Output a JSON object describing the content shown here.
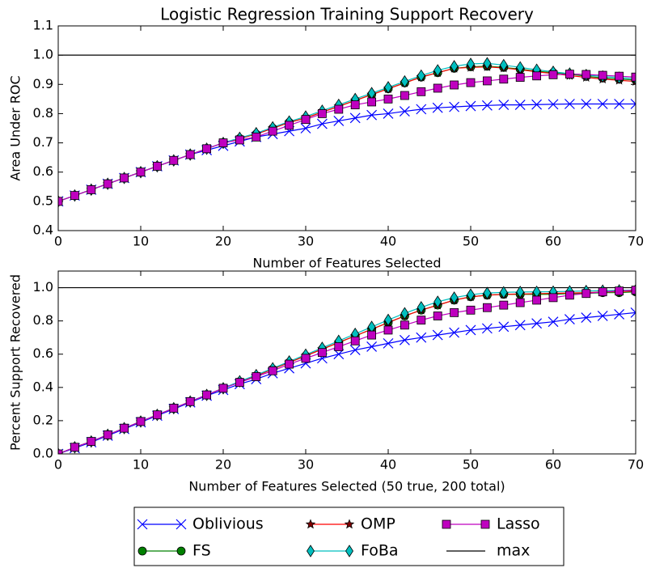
{
  "chart_data": [
    {
      "type": "line",
      "title": "Logistic Regression Training Support Recovery",
      "xlabel": "Number of Features Selected",
      "ylabel": "Area Under ROC",
      "x": [
        0,
        2,
        4,
        6,
        8,
        10,
        12,
        14,
        16,
        18,
        20,
        22,
        24,
        26,
        28,
        30,
        32,
        34,
        36,
        38,
        40,
        42,
        44,
        46,
        48,
        50,
        52,
        54,
        56,
        58,
        60,
        62,
        64,
        66,
        68,
        70
      ],
      "xlim": [
        0,
        70
      ],
      "xticks": [
        0,
        10,
        20,
        30,
        40,
        50,
        60,
        70
      ],
      "ylim": [
        0.4,
        1.1
      ],
      "yticks": [
        0.4,
        0.5,
        0.6,
        0.7,
        0.8,
        0.9,
        {
          "value": 1,
          "label": "1.0"
        },
        1.1
      ],
      "series": [
        {
          "name": "Oblivious",
          "color": "#0000ff",
          "marker": "x",
          "values": [
            0.5,
            0.52,
            0.54,
            0.56,
            0.58,
            0.6,
            0.62,
            0.64,
            0.66,
            0.675,
            0.69,
            0.705,
            0.72,
            0.73,
            0.74,
            0.75,
            0.765,
            0.775,
            0.785,
            0.795,
            0.8,
            0.808,
            0.815,
            0.82,
            0.823,
            0.826,
            0.828,
            0.83,
            0.83,
            0.831,
            0.832,
            0.833,
            0.833,
            0.833,
            0.833,
            0.833
          ]
        },
        {
          "name": "FS",
          "color": "#008000",
          "marker": "circle",
          "values": [
            0.5,
            0.52,
            0.54,
            0.56,
            0.58,
            0.6,
            0.62,
            0.64,
            0.66,
            0.68,
            0.7,
            0.715,
            0.73,
            0.75,
            0.77,
            0.785,
            0.805,
            0.825,
            0.845,
            0.865,
            0.885,
            0.905,
            0.925,
            0.94,
            0.955,
            0.96,
            0.962,
            0.958,
            0.952,
            0.945,
            0.94,
            0.935,
            0.928,
            0.922,
            0.918,
            0.915
          ]
        },
        {
          "name": "OMP",
          "color": "#ff0000",
          "marker": "star",
          "values": [
            0.5,
            0.52,
            0.54,
            0.56,
            0.58,
            0.6,
            0.62,
            0.64,
            0.66,
            0.68,
            0.7,
            0.715,
            0.73,
            0.75,
            0.77,
            0.785,
            0.805,
            0.825,
            0.845,
            0.865,
            0.885,
            0.905,
            0.925,
            0.94,
            0.955,
            0.958,
            0.96,
            0.956,
            0.95,
            0.943,
            0.937,
            0.93,
            0.924,
            0.918,
            0.914,
            0.91
          ]
        },
        {
          "name": "FoBa",
          "color": "#00bfbf",
          "marker": "diamond",
          "values": [
            0.5,
            0.52,
            0.54,
            0.56,
            0.58,
            0.6,
            0.62,
            0.64,
            0.66,
            0.68,
            0.7,
            0.717,
            0.733,
            0.753,
            0.773,
            0.79,
            0.81,
            0.83,
            0.85,
            0.87,
            0.89,
            0.91,
            0.93,
            0.948,
            0.962,
            0.97,
            0.972,
            0.966,
            0.958,
            0.95,
            0.943,
            0.937,
            0.932,
            0.927,
            0.923,
            0.92
          ]
        },
        {
          "name": "Lasso",
          "color": "#bf00bf",
          "marker": "square",
          "values": [
            0.5,
            0.52,
            0.54,
            0.56,
            0.58,
            0.6,
            0.62,
            0.64,
            0.66,
            0.68,
            0.7,
            0.71,
            0.72,
            0.74,
            0.76,
            0.78,
            0.8,
            0.815,
            0.83,
            0.84,
            0.85,
            0.862,
            0.875,
            0.887,
            0.898,
            0.906,
            0.912,
            0.918,
            0.924,
            0.929,
            0.933,
            0.935,
            0.934,
            0.931,
            0.928,
            0.925
          ]
        },
        {
          "name": "max",
          "color": "#000000",
          "marker": "none",
          "values": [
            1,
            1,
            1,
            1,
            1,
            1,
            1,
            1,
            1,
            1,
            1,
            1,
            1,
            1,
            1,
            1,
            1,
            1,
            1,
            1,
            1,
            1,
            1,
            1,
            1,
            1,
            1,
            1,
            1,
            1,
            1,
            1,
            1,
            1,
            1,
            1
          ]
        }
      ]
    },
    {
      "type": "line",
      "xlabel": "Number of Features Selected (50 true, 200 total)",
      "ylabel": "Percent Support Recovered",
      "x": [
        0,
        2,
        4,
        6,
        8,
        10,
        12,
        14,
        16,
        18,
        20,
        22,
        24,
        26,
        28,
        30,
        32,
        34,
        36,
        38,
        40,
        42,
        44,
        46,
        48,
        50,
        52,
        54,
        56,
        58,
        60,
        62,
        64,
        66,
        68,
        70
      ],
      "xlim": [
        0,
        70
      ],
      "xticks": [
        0,
        10,
        20,
        30,
        40,
        50,
        60,
        70
      ],
      "ylim": [
        0,
        1.1
      ],
      "yticks": [
        {
          "value": 0,
          "label": "0.0"
        },
        0.2,
        0.4,
        0.6,
        0.8,
        {
          "value": 1,
          "label": "1.0"
        }
      ],
      "series": [
        {
          "color": "#0000ff",
          "marker": "x",
          "values": [
            0,
            0.035,
            0.07,
            0.11,
            0.15,
            0.19,
            0.23,
            0.27,
            0.31,
            0.35,
            0.385,
            0.42,
            0.45,
            0.485,
            0.515,
            0.545,
            0.575,
            0.6,
            0.625,
            0.645,
            0.665,
            0.685,
            0.7,
            0.715,
            0.73,
            0.745,
            0.755,
            0.765,
            0.775,
            0.785,
            0.795,
            0.81,
            0.82,
            0.83,
            0.84,
            0.85
          ]
        },
        {
          "color": "#008000",
          "marker": "circle",
          "values": [
            0,
            0.04,
            0.075,
            0.115,
            0.155,
            0.195,
            0.235,
            0.275,
            0.315,
            0.355,
            0.395,
            0.435,
            0.47,
            0.51,
            0.55,
            0.59,
            0.63,
            0.67,
            0.71,
            0.75,
            0.79,
            0.83,
            0.865,
            0.895,
            0.925,
            0.945,
            0.955,
            0.96,
            0.96,
            0.96,
            0.96,
            0.965,
            0.965,
            0.97,
            0.97,
            0.975
          ]
        },
        {
          "color": "#ff0000",
          "marker": "star",
          "values": [
            0,
            0.04,
            0.075,
            0.115,
            0.155,
            0.195,
            0.235,
            0.275,
            0.315,
            0.355,
            0.395,
            0.435,
            0.47,
            0.51,
            0.55,
            0.59,
            0.63,
            0.67,
            0.71,
            0.75,
            0.79,
            0.83,
            0.865,
            0.895,
            0.925,
            0.945,
            0.955,
            0.96,
            0.962,
            0.964,
            0.966,
            0.968,
            0.97,
            0.974,
            0.977,
            0.98
          ]
        },
        {
          "color": "#00bfbf",
          "marker": "diamond",
          "values": [
            0,
            0.04,
            0.075,
            0.115,
            0.155,
            0.195,
            0.235,
            0.275,
            0.315,
            0.355,
            0.395,
            0.437,
            0.474,
            0.515,
            0.556,
            0.597,
            0.638,
            0.68,
            0.722,
            0.764,
            0.806,
            0.846,
            0.882,
            0.915,
            0.94,
            0.958,
            0.968,
            0.972,
            0.974,
            0.975,
            0.976,
            0.978,
            0.98,
            0.982,
            0.984,
            0.985
          ]
        },
        {
          "color": "#bf00bf",
          "marker": "square",
          "values": [
            0,
            0.04,
            0.075,
            0.115,
            0.155,
            0.195,
            0.235,
            0.275,
            0.315,
            0.355,
            0.395,
            0.43,
            0.465,
            0.5,
            0.54,
            0.575,
            0.61,
            0.645,
            0.68,
            0.715,
            0.745,
            0.775,
            0.805,
            0.83,
            0.85,
            0.865,
            0.88,
            0.895,
            0.91,
            0.925,
            0.94,
            0.955,
            0.965,
            0.975,
            0.98,
            0.985
          ]
        },
        {
          "color": "#000000",
          "marker": "none",
          "values": [
            1,
            1,
            1,
            1,
            1,
            1,
            1,
            1,
            1,
            1,
            1,
            1,
            1,
            1,
            1,
            1,
            1,
            1,
            1,
            1,
            1,
            1,
            1,
            1,
            1,
            1,
            1,
            1,
            1,
            1,
            1,
            1,
            1,
            1,
            1,
            1
          ]
        }
      ]
    }
  ]
}
